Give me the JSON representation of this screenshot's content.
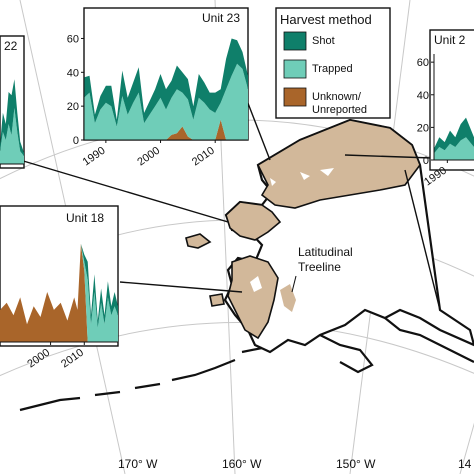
{
  "legend": {
    "title": "Harvest method",
    "items": [
      {
        "label": "Shot",
        "color": "#0f7f6a"
      },
      {
        "label": "Trapped",
        "color": "#6fcdb8"
      },
      {
        "label": "Unknown/\nUnreported",
        "color": "#a9652a"
      }
    ]
  },
  "map": {
    "land_color": "#d2b89a",
    "feature_label": "Latitudinal\nTreeline",
    "longitude_labels": [
      "170° W",
      "160° W",
      "150° W",
      "14"
    ]
  },
  "chart_data": [
    {
      "type": "area",
      "title": "Unit 23",
      "x_ticks": [
        "1990",
        "2000",
        "2010"
      ],
      "y_ticks": [
        "0",
        "20",
        "40",
        "60"
      ],
      "ylim": [
        0,
        65
      ],
      "xlim": [
        1986,
        2016
      ],
      "x": [
        1986,
        1987,
        1988,
        1989,
        1990,
        1991,
        1992,
        1993,
        1994,
        1995,
        1996,
        1997,
        1998,
        1999,
        2000,
        2001,
        2002,
        2003,
        2004,
        2005,
        2006,
        2007,
        2008,
        2009,
        2010,
        2011,
        2012,
        2013,
        2014,
        2015,
        2016
      ],
      "series": [
        {
          "name": "Unknown/Unreported",
          "values": [
            0,
            0,
            0,
            0,
            0,
            0,
            0,
            0,
            0,
            0,
            0,
            0,
            0,
            0,
            0,
            0,
            3,
            4,
            8,
            2,
            0,
            0,
            0,
            0,
            0,
            12,
            0,
            0,
            0,
            0,
            0
          ]
        },
        {
          "name": "Trapped",
          "values": [
            25,
            28,
            10,
            18,
            22,
            20,
            8,
            26,
            15,
            22,
            28,
            10,
            15,
            20,
            25,
            18,
            22,
            26,
            20,
            22,
            12,
            25,
            22,
            18,
            16,
            10,
            30,
            38,
            45,
            42,
            30
          ]
        },
        {
          "name": "Shot",
          "values": [
            12,
            10,
            5,
            8,
            10,
            12,
            4,
            15,
            10,
            12,
            15,
            6,
            8,
            10,
            14,
            12,
            10,
            14,
            12,
            12,
            8,
            14,
            12,
            10,
            12,
            8,
            18,
            22,
            14,
            10,
            8
          ]
        }
      ]
    },
    {
      "type": "area",
      "title": "Unit 18",
      "x_ticks": [
        "2000",
        "2010"
      ],
      "y_ticks": [],
      "xlim": [
        1985,
        2020
      ],
      "ylim": [
        0,
        65
      ],
      "x": [
        1985,
        1987,
        1989,
        1991,
        1993,
        1995,
        1997,
        1999,
        2001,
        2003,
        2005,
        2007,
        2008,
        2009,
        2010,
        2011,
        2012,
        2013,
        2014,
        2015,
        2016,
        2017,
        2018,
        2019,
        2020
      ],
      "series": [
        {
          "name": "Unknown/Unreported",
          "values": [
            18,
            22,
            15,
            25,
            10,
            20,
            14,
            28,
            18,
            22,
            12,
            25,
            18,
            55,
            40,
            0,
            0,
            0,
            0,
            0,
            0,
            0,
            0,
            0,
            0
          ]
        },
        {
          "name": "Trapped",
          "values": [
            0,
            0,
            0,
            0,
            0,
            0,
            0,
            0,
            0,
            0,
            0,
            0,
            0,
            0,
            5,
            35,
            10,
            28,
            8,
            22,
            10,
            25,
            15,
            20,
            15
          ]
        },
        {
          "name": "Shot",
          "values": [
            0,
            0,
            0,
            0,
            0,
            0,
            0,
            0,
            0,
            0,
            0,
            0,
            0,
            0,
            4,
            10,
            5,
            10,
            4,
            8,
            5,
            9,
            5,
            8,
            5
          ]
        }
      ]
    },
    {
      "type": "area",
      "title": "22",
      "x_ticks": [],
      "y_ticks": [],
      "xlim": [
        1990,
        2015
      ],
      "ylim": [
        0,
        65
      ],
      "x": [
        1990,
        1993,
        1996,
        1999,
        2002,
        2005,
        2008,
        2011,
        2015
      ],
      "series": [
        {
          "name": "Unknown/Unreported",
          "values": [
            0,
            0,
            0,
            0,
            0,
            0,
            0,
            0,
            0
          ]
        },
        {
          "name": "Trapped",
          "values": [
            8,
            20,
            15,
            25,
            18,
            35,
            20,
            8,
            5
          ]
        },
        {
          "name": "Shot",
          "values": [
            4,
            12,
            10,
            20,
            25,
            18,
            12,
            6,
            2
          ]
        }
      ]
    },
    {
      "type": "area",
      "title": "Unit 2",
      "x_ticks": [
        "1990"
      ],
      "y_ticks": [
        "0",
        "20",
        "40",
        "60"
      ],
      "xlim": [
        1985,
        2000
      ],
      "ylim": [
        0,
        65
      ],
      "x": [
        1985,
        1987,
        1989,
        1991,
        1993,
        1995,
        1997,
        1999,
        2000
      ],
      "series": [
        {
          "name": "Unknown/Unreported",
          "values": [
            0,
            0,
            0,
            0,
            0,
            0,
            0,
            0,
            0
          ]
        },
        {
          "name": "Trapped",
          "values": [
            4,
            8,
            6,
            10,
            8,
            12,
            14,
            10,
            8
          ]
        },
        {
          "name": "Shot",
          "values": [
            3,
            6,
            5,
            8,
            6,
            10,
            12,
            8,
            6
          ]
        }
      ]
    }
  ]
}
